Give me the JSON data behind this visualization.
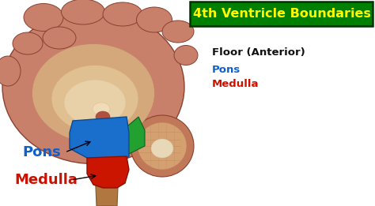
{
  "title": "4th Ventricle Boundaries",
  "title_bg": "#008000",
  "title_text_color": "#FFFF00",
  "title_fontsize": 11.5,
  "title_fontweight": "bold",
  "subtitle": "Floor (Anterior)",
  "subtitle_color": "#111111",
  "subtitle_fontsize": 9.5,
  "subtitle_fontweight": "bold",
  "legend_items": [
    {
      "label": "Pons",
      "color": "#1060CC"
    },
    {
      "label": "Medulla",
      "color": "#CC1100"
    }
  ],
  "legend_fontsize": 9.5,
  "legend_fontweight": "bold",
  "pons_label": "Pons",
  "pons_color": "#1060CC",
  "pons_fontsize": 13,
  "pons_fontweight": "bold",
  "medulla_label": "Medulla",
  "medulla_color": "#CC1100",
  "medulla_fontsize": 13,
  "medulla_fontweight": "bold",
  "bg_color": "#FFFFFF",
  "fig_width": 4.74,
  "fig_height": 2.61,
  "dpi": 100,
  "brain_main_color": "#C8806A",
  "brain_edge_color": "#8B4030",
  "brain_inner_color": "#D4A87A",
  "corpus_color": "#E0C090",
  "corpus2_color": "#E8D0A8",
  "stem_color": "#B07840",
  "pons_fill": "#1B6FCC",
  "pons_edge": "#0A4A90",
  "medulla_fill": "#CC1500",
  "medulla_edge": "#881000",
  "green_fill": "#22A030",
  "green_edge": "#106020",
  "cereb_color": "#C07858",
  "cereb_inner": "#D4A070"
}
